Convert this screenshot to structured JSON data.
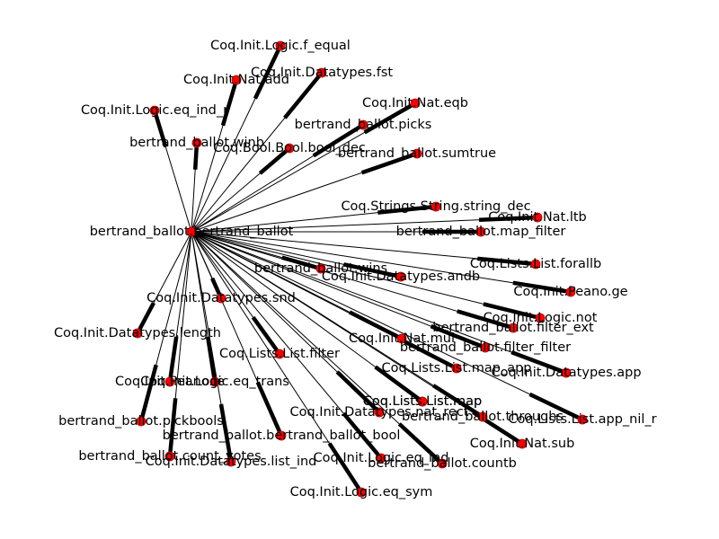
{
  "graph": {
    "colors": {
      "node": "#ff0000",
      "edge": "#000000",
      "label": "#000000",
      "background": "#ffffff"
    },
    "hub": "bertrand_ballot.bertrand_ballot",
    "nodes": [
      {
        "id": "bertrand_ballot.bertrand_ballot",
        "label": "bertrand_ballot.bertrand_ballot"
      },
      {
        "id": "Coq.Init.Logic.f_equal",
        "label": "Coq.Init.Logic.f_equal"
      },
      {
        "id": "Coq.Init.Nat.add",
        "label": "Coq.Init.Nat.add"
      },
      {
        "id": "Coq.Init.Datatypes.fst",
        "label": "Coq.Init.Datatypes.fst"
      },
      {
        "id": "Coq.Init.Nat.eqb",
        "label": "Coq.Init.Nat.eqb"
      },
      {
        "id": "Coq.Init.Logic.eq_ind_r",
        "label": "Coq.Init.Logic.eq_ind_r"
      },
      {
        "id": "bertrand_ballot.picks",
        "label": "bertrand_ballot.picks"
      },
      {
        "id": "bertrand_ballot.winb",
        "label": "bertrand_ballot.winb"
      },
      {
        "id": "Coq.Bool.Bool.bool_dec",
        "label": "Coq.Bool.Bool.bool_dec"
      },
      {
        "id": "bertrand_ballot.sumtrue",
        "label": "bertrand_ballot.sumtrue"
      },
      {
        "id": "Coq.Lists.List.map",
        "label": "Coq.Lists.List.map"
      },
      {
        "id": "Coq.Strings.String.string_dec",
        "label": "Coq.Strings.String.string_dec"
      },
      {
        "id": "Coq.Init.Nat.ltb",
        "label": "Coq.Init.Nat.ltb"
      },
      {
        "id": "bertrand_ballot.map_filter",
        "label": "bertrand_ballot.map_filter"
      },
      {
        "id": "Coq.Lists.List.forallb",
        "label": "Coq.Lists.List.forallb"
      },
      {
        "id": "bertrand_ballot.wins",
        "label": "bertrand_ballot.wins"
      },
      {
        "id": "Coq.Init.Datatypes.andb",
        "label": "Coq.Init.Datatypes.andb"
      },
      {
        "id": "Coq.Init.Peano.ge",
        "label": "Coq.Init.Peano.ge"
      },
      {
        "id": "Coq.Init.Datatypes.snd",
        "label": "Coq.Init.Datatypes.snd"
      },
      {
        "id": "Coq.Init.Logic.not",
        "label": "Coq.Init.Logic.not"
      },
      {
        "id": "bertrand_ballot.filter_ext",
        "label": "bertrand_ballot.filter_ext"
      },
      {
        "id": "Coq.Init.Datatypes.length",
        "label": "Coq.Init.Datatypes.length"
      },
      {
        "id": "Coq.Init.Nat.mul",
        "label": "Coq.Init.Nat.mul"
      },
      {
        "id": "bertrand_ballot.filter_filter",
        "label": "bertrand_ballot.filter_filter"
      },
      {
        "id": "Coq.Lists.List.filter",
        "label": "Coq.Lists.List.filter"
      },
      {
        "id": "Coq.Lists.List.map_app",
        "label": "Coq.Lists.List.map_app"
      },
      {
        "id": "Coq.Init.Datatypes.app",
        "label": "Coq.Init.Datatypes.app"
      },
      {
        "id": "Coq.Init.Peano.le",
        "label": "Coq.Init.Peano.le"
      },
      {
        "id": "Coq.Init.Logic.eq_trans",
        "label": "Coq.Init.Logic.eq_trans"
      },
      {
        "id": "Coq.Lists.List.map",
        "label": "Coq.Lists.List.map"
      },
      {
        "id": "Coq.Init.Datatypes.nat_rect",
        "label": "Coq.Init.Datatypes.nat_rect"
      },
      {
        "id": "bertrand_ballot.throughs",
        "label": "bertrand_ballot.throughs"
      },
      {
        "id": "Coq.Lists.List.app_nil_r",
        "label": "Coq.Lists.List.app_nil_r"
      },
      {
        "id": "bertrand_ballot.pickbools",
        "label": "bertrand_ballot.pickbools"
      },
      {
        "id": "bertrand_ballot.bertrand_ballot_bool",
        "label": "bertrand_ballot.bertrand_ballot_bool"
      },
      {
        "id": "Coq.Init.Nat.sub",
        "label": "Coq.Init.Nat.sub"
      },
      {
        "id": "bertrand_ballot.count_votes",
        "label": "bertrand_ballot.count_votes"
      },
      {
        "id": "Coq.Init.Logic.eq_ind",
        "label": "Coq.Init.Logic.eq_ind"
      },
      {
        "id": "Coq.Init.Datatypes.list_ind",
        "label": "Coq.Init.Datatypes.list_ind"
      },
      {
        "id": "bertrand_ballot.countb",
        "label": "bertrand_ballot.countb"
      },
      {
        "id": "Coq.Init.Logic.eq_sym",
        "label": "Coq.Init.Logic.eq_sym"
      }
    ],
    "edges": [
      {
        "source": "bertrand_ballot.bertrand_ballot",
        "target": "Coq.Init.Logic.f_equal"
      },
      {
        "source": "bertrand_ballot.bertrand_ballot",
        "target": "Coq.Init.Nat.add"
      },
      {
        "source": "bertrand_ballot.bertrand_ballot",
        "target": "Coq.Init.Datatypes.fst"
      },
      {
        "source": "bertrand_ballot.bertrand_ballot",
        "target": "Coq.Init.Nat.eqb"
      },
      {
        "source": "bertrand_ballot.bertrand_ballot",
        "target": "Coq.Init.Logic.eq_ind_r"
      },
      {
        "source": "bertrand_ballot.bertrand_ballot",
        "target": "bertrand_ballot.picks"
      },
      {
        "source": "bertrand_ballot.bertrand_ballot",
        "target": "bertrand_ballot.winb"
      },
      {
        "source": "bertrand_ballot.bertrand_ballot",
        "target": "Coq.Bool.Bool.bool_dec"
      },
      {
        "source": "bertrand_ballot.bertrand_ballot",
        "target": "bertrand_ballot.sumtrue"
      },
      {
        "source": "bertrand_ballot.bertrand_ballot",
        "target": "Coq.Lists.List.map"
      },
      {
        "source": "bertrand_ballot.bertrand_ballot",
        "target": "Coq.Strings.String.string_dec"
      },
      {
        "source": "bertrand_ballot.bertrand_ballot",
        "target": "Coq.Init.Nat.ltb"
      },
      {
        "source": "bertrand_ballot.bertrand_ballot",
        "target": "bertrand_ballot.map_filter"
      },
      {
        "source": "bertrand_ballot.bertrand_ballot",
        "target": "Coq.Lists.List.forallb"
      },
      {
        "source": "bertrand_ballot.bertrand_ballot",
        "target": "bertrand_ballot.wins"
      },
      {
        "source": "bertrand_ballot.bertrand_ballot",
        "target": "Coq.Init.Datatypes.andb"
      },
      {
        "source": "bertrand_ballot.bertrand_ballot",
        "target": "Coq.Init.Peano.ge"
      },
      {
        "source": "bertrand_ballot.bertrand_ballot",
        "target": "Coq.Init.Datatypes.snd"
      },
      {
        "source": "bertrand_ballot.bertrand_ballot",
        "target": "Coq.Init.Logic.not"
      },
      {
        "source": "bertrand_ballot.bertrand_ballot",
        "target": "bertrand_ballot.filter_ext"
      },
      {
        "source": "bertrand_ballot.bertrand_ballot",
        "target": "Coq.Init.Datatypes.length"
      },
      {
        "source": "bertrand_ballot.bertrand_ballot",
        "target": "Coq.Init.Nat.mul"
      },
      {
        "source": "bertrand_ballot.bertrand_ballot",
        "target": "bertrand_ballot.filter_filter"
      },
      {
        "source": "bertrand_ballot.bertrand_ballot",
        "target": "Coq.Lists.List.filter"
      },
      {
        "source": "bertrand_ballot.bertrand_ballot",
        "target": "Coq.Lists.List.map_app"
      },
      {
        "source": "bertrand_ballot.bertrand_ballot",
        "target": "Coq.Init.Datatypes.app"
      },
      {
        "source": "bertrand_ballot.bertrand_ballot",
        "target": "Coq.Init.Peano.le"
      },
      {
        "source": "bertrand_ballot.bertrand_ballot",
        "target": "Coq.Init.Logic.eq_trans"
      },
      {
        "source": "bertrand_ballot.bertrand_ballot",
        "target": "Coq.Init.Datatypes.nat_rect"
      },
      {
        "source": "bertrand_ballot.bertrand_ballot",
        "target": "bertrand_ballot.throughs"
      },
      {
        "source": "bertrand_ballot.bertrand_ballot",
        "target": "Coq.Lists.List.app_nil_r"
      },
      {
        "source": "bertrand_ballot.bertrand_ballot",
        "target": "bertrand_ballot.pickbools"
      },
      {
        "source": "bertrand_ballot.bertrand_ballot",
        "target": "bertrand_ballot.bertrand_ballot_bool"
      },
      {
        "source": "bertrand_ballot.bertrand_ballot",
        "target": "Coq.Init.Nat.sub"
      },
      {
        "source": "bertrand_ballot.bertrand_ballot",
        "target": "bertrand_ballot.count_votes"
      },
      {
        "source": "bertrand_ballot.bertrand_ballot",
        "target": "Coq.Init.Logic.eq_ind"
      },
      {
        "source": "bertrand_ballot.bertrand_ballot",
        "target": "Coq.Init.Datatypes.list_ind"
      },
      {
        "source": "bertrand_ballot.bertrand_ballot",
        "target": "bertrand_ballot.countb"
      },
      {
        "source": "bertrand_ballot.bertrand_ballot",
        "target": "Coq.Init.Logic.eq_sym"
      }
    ]
  }
}
